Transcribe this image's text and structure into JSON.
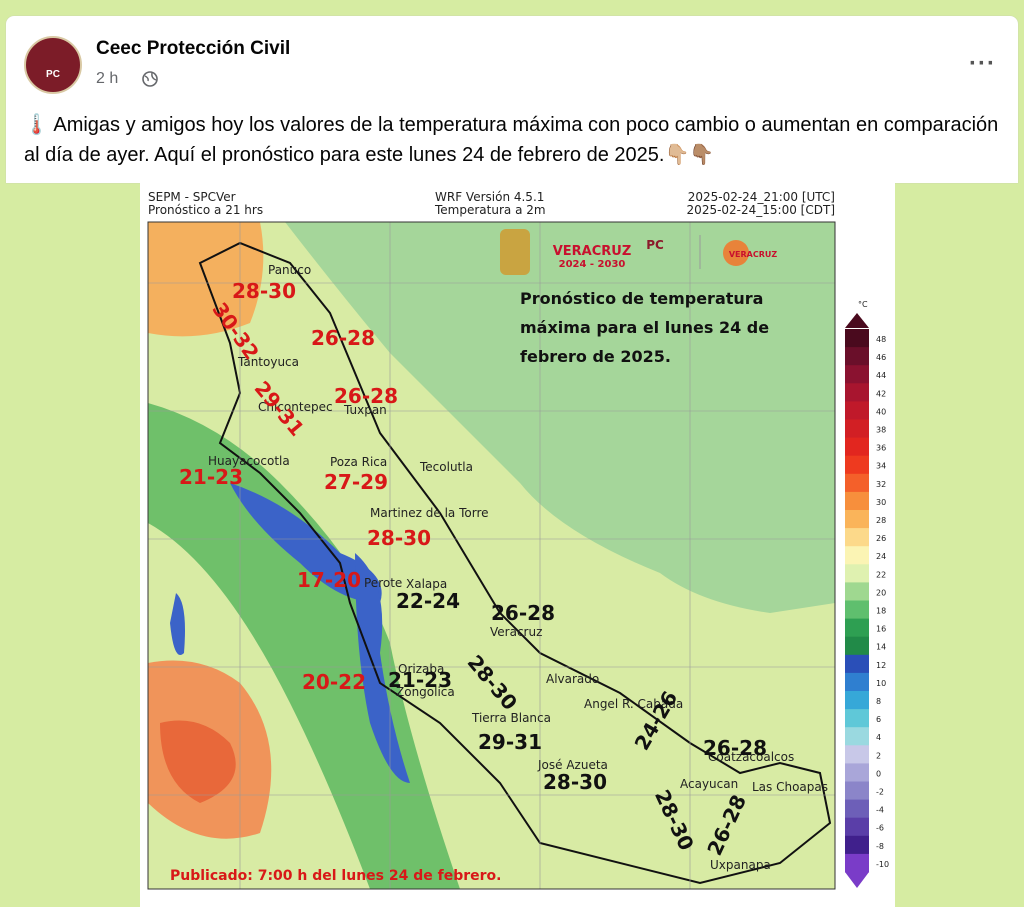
{
  "post": {
    "author": "Ceec Protección Civil",
    "avatar_label": "PC",
    "time": "2 h",
    "text": "🌡️ Amigas y amigos hoy los valores de la temperatura máxima con poco cambio o aumentan en comparación al día de ayer. Aquí el pronóstico para este lunes 24 de febrero de 2025.👇🏼👇🏽"
  },
  "map": {
    "header": [
      "SEPM - SPCVer",
      "Pronóstico a 21 hrs",
      "WRF Versión 4.5.1",
      "Temperatura a 2m",
      "2025-02-24_21:00 [UTC]",
      "2025-02-24_15:00 [CDT]"
    ],
    "logos": [
      "VERACRUZ",
      "2024 - 2030",
      "PC",
      "VERACRUZ"
    ],
    "caption": [
      "Pronóstico de temperatura",
      "máxima para el lunes 24 de",
      "febrero de 2025."
    ],
    "places": [
      "Panuco",
      "Tantoyuca",
      "Chicontepec",
      "Tuxpan",
      "Huayacocotla",
      "Poza Rica",
      "Tecolutla",
      "Martinez de la Torre",
      "Perote",
      "Xalapa",
      "Veracruz",
      "Orizaba",
      "Alvarado",
      "Zongolica",
      "Tierra Blanca",
      "Angel R. Cabada",
      "José Azueta",
      "Coatzacoalcos",
      "Acayucan",
      "Las Choapas",
      "Uxpanapa"
    ],
    "ranges": [
      {
        "label": "28-30",
        "color": "#d81818"
      },
      {
        "label": "30-32",
        "color": "#d81818"
      },
      {
        "label": "26-28",
        "color": "#d81818"
      },
      {
        "label": "26-28",
        "color": "#d81818"
      },
      {
        "label": "29-31",
        "color": "#d81818"
      },
      {
        "label": "21-23",
        "color": "#d81818"
      },
      {
        "label": "27-29",
        "color": "#d81818"
      },
      {
        "label": "28-30",
        "color": "#d81818"
      },
      {
        "label": "17-20",
        "color": "#d81818"
      },
      {
        "label": "20-22",
        "color": "#d81818"
      },
      {
        "label": "22-24",
        "color": "#111111"
      },
      {
        "label": "26-28",
        "color": "#111111"
      },
      {
        "label": "21-23",
        "color": "#111111"
      },
      {
        "label": "28-30",
        "color": "#111111"
      },
      {
        "label": "24-26",
        "color": "#111111"
      },
      {
        "label": "29-31",
        "color": "#111111"
      },
      {
        "label": "26-28",
        "color": "#111111"
      },
      {
        "label": "28-30",
        "color": "#111111"
      },
      {
        "label": "28-30",
        "color": "#111111"
      },
      {
        "label": "26-28",
        "color": "#111111"
      }
    ],
    "legend_unit": "°C",
    "legend_ticks": [
      48,
      46,
      44,
      42,
      40,
      38,
      36,
      34,
      32,
      30,
      28,
      26,
      24,
      22,
      20,
      18,
      16,
      14,
      12,
      10,
      8,
      6,
      4,
      2,
      0,
      -2,
      -4,
      -6,
      -8,
      -10
    ],
    "footer": "Publicado: 7:00 h del lunes 24 de febrero."
  }
}
